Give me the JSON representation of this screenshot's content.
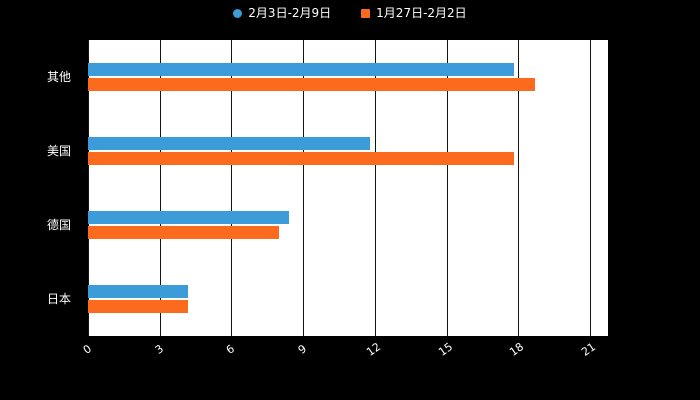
{
  "colors": {
    "background": "#000000",
    "plot_background": "#ffffff",
    "gridline": "#141414",
    "text": "#ffffff"
  },
  "chart_data": {
    "type": "bar",
    "orientation": "horizontal",
    "title": "",
    "xlabel": "",
    "ylabel": "",
    "grid": true,
    "legend_position": "top",
    "xlim": [
      0,
      21
    ],
    "xticks": [
      0,
      3,
      6,
      9,
      12,
      15,
      18,
      21
    ],
    "categories": [
      "其他",
      "美国",
      "德国",
      "日本"
    ],
    "series": [
      {
        "name": "2月3日-2月9日",
        "color": "#3b9cd9",
        "marker": "circle",
        "values": [
          17.8,
          11.8,
          8.4,
          4.2
        ]
      },
      {
        "name": "1月27日-2月2日",
        "color": "#fc6a1e",
        "marker": "square",
        "values": [
          18.7,
          17.8,
          8.0,
          4.2
        ]
      }
    ]
  }
}
